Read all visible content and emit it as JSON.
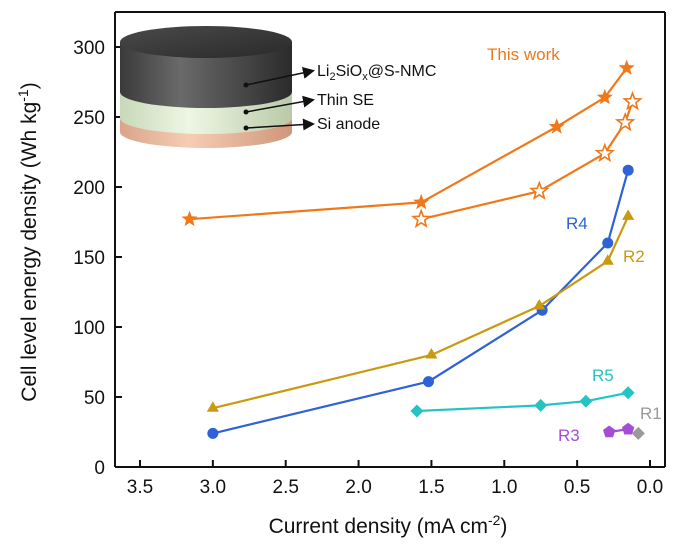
{
  "chart_data": {
    "type": "line",
    "xlabel": "Current density (mA cm",
    "xlabel_sup": "-2",
    "xlabel_end": ")",
    "ylabel": "Cell level energy density (Wh kg",
    "ylabel_sup": "-1",
    "ylabel_end": ")",
    "xlim": [
      3.5,
      0.0
    ],
    "x_reversed": true,
    "ylim": [
      0,
      300
    ],
    "xticks": [
      "3.5",
      "3.0",
      "2.5",
      "2.0",
      "1.5",
      "1.0",
      "0.5",
      "0.0"
    ],
    "xtick_values": [
      3.5,
      3.0,
      2.5,
      2.0,
      1.5,
      1.0,
      0.5,
      0.0
    ],
    "yticks": [
      "0",
      "50",
      "100",
      "150",
      "200",
      "250",
      "300"
    ],
    "ytick_values": [
      0,
      50,
      100,
      150,
      200,
      250,
      300
    ],
    "grid": false,
    "series": [
      {
        "name": "This work",
        "color": "#F07818",
        "marker": "star-filled",
        "points": [
          [
            3.16,
            177
          ],
          [
            1.57,
            189
          ],
          [
            0.64,
            243
          ],
          [
            0.31,
            264
          ],
          [
            0.16,
            285
          ]
        ]
      },
      {
        "name": "",
        "color": "#F07818",
        "marker": "star-open",
        "points": [
          [
            1.57,
            177
          ],
          [
            0.76,
            197
          ],
          [
            0.31,
            224
          ],
          [
            0.17,
            246
          ],
          [
            0.12,
            261
          ]
        ]
      },
      {
        "name": "R4",
        "color": "#2E62D6",
        "marker": "circle",
        "points": [
          [
            3.0,
            24
          ],
          [
            1.52,
            61
          ],
          [
            0.74,
            112
          ],
          [
            0.29,
            160
          ],
          [
            0.15,
            212
          ]
        ]
      },
      {
        "name": "R2",
        "color": "#C99A10",
        "marker": "triangle",
        "points": [
          [
            3.0,
            42
          ],
          [
            1.5,
            80
          ],
          [
            0.76,
            115
          ],
          [
            0.29,
            147
          ],
          [
            0.15,
            179
          ]
        ]
      },
      {
        "name": "R5",
        "color": "#25C4C4",
        "marker": "diamond",
        "points": [
          [
            1.6,
            40
          ],
          [
            0.75,
            44
          ],
          [
            0.44,
            47
          ],
          [
            0.15,
            53
          ]
        ]
      },
      {
        "name": "R3",
        "color": "#A64DD6",
        "marker": "pentagon",
        "points": [
          [
            0.28,
            25
          ],
          [
            0.15,
            27
          ]
        ]
      },
      {
        "name": "R1",
        "color": "#999999",
        "marker": "diamond",
        "points": [
          [
            0.08,
            24
          ]
        ]
      }
    ],
    "annotations": [
      {
        "text": "This work",
        "color": "#F07818"
      },
      {
        "text": "R4",
        "color": "#2E62D6"
      },
      {
        "text": "R2",
        "color": "#C99A10"
      },
      {
        "text": "R5",
        "color": "#25C4C4"
      },
      {
        "text": "R3",
        "color": "#A64DD6"
      },
      {
        "text": "R1",
        "color": "#999999"
      }
    ]
  },
  "inset": {
    "layer_top_label": "Li",
    "layer_top_sub1": "2",
    "layer_top_mid": "SiO",
    "layer_top_sub2": "x",
    "layer_top_end": "@S-NMC",
    "layer_middle_label": "Thin SE",
    "layer_bottom_label": "Si anode"
  }
}
